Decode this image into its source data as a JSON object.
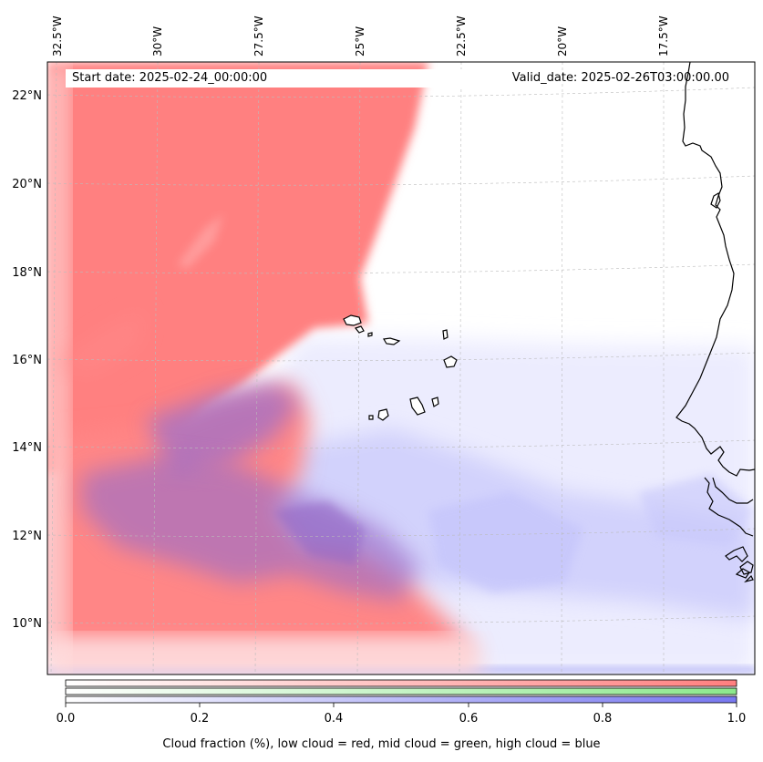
{
  "map": {
    "start_label": "Start date: 2025-02-24_00:00:00",
    "valid_label": "Valid_date: 2025-02-26T03:00:00.00",
    "lon_labels": [
      "32.5°W",
      "30°W",
      "27.5°W",
      "25°W",
      "22.5°W",
      "20°W",
      "17.5°W"
    ],
    "lat_labels": [
      "22°N",
      "20°N",
      "18°N",
      "16°N",
      "14°N",
      "12°N",
      "10°N"
    ],
    "lon_range": [
      -33,
      -15.5
    ],
    "lat_range": [
      8.8,
      22.8
    ],
    "gridlines": true,
    "colors": {
      "low_cloud": "#ff7f7f",
      "mid_cloud": "#8ce88c",
      "high_cloud": "#8080ff",
      "coast": "#000000"
    }
  },
  "colorbar": {
    "ticks": [
      "0.0",
      "0.2",
      "0.4",
      "0.6",
      "0.8",
      "1.0"
    ],
    "range": [
      0,
      1
    ],
    "caption": "Cloud fraction (%), low cloud = red, mid cloud = green, high cloud = blue"
  }
}
